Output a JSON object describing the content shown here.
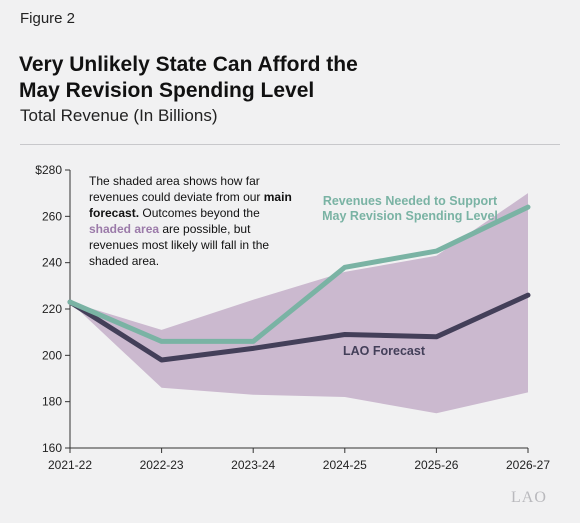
{
  "figure_label": "Figure 2",
  "title_line1": "Very Unlikely State Can Afford the",
  "title_line2": "May Revision Spending Level",
  "subtitle": "Total Revenue (In Billions)",
  "note": {
    "part1": "The shaded area shows how far revenues could deviate from our ",
    "main_forecast": "main forecast.",
    "part2": " Outcomes beyond the ",
    "shaded_area": "shaded area",
    "part3": " are possible, but revenues most likely will fall in the shaded area."
  },
  "logo": "LAO",
  "colors": {
    "background": "#f1f1f2",
    "band": "#cbb9cf",
    "lao_forecast": "#433f59",
    "revenues_needed": "#7ab3a4",
    "axis": "#333333",
    "shaded_text": "#9b7aa9"
  },
  "chart_data": {
    "type": "line",
    "categories": [
      "2021-22",
      "2022-23",
      "2023-24",
      "2024-25",
      "2025-26",
      "2026-27"
    ],
    "ylim": [
      160,
      280
    ],
    "yticks": [
      160,
      180,
      200,
      220,
      240,
      260,
      280
    ],
    "ytick_labels": [
      "160",
      "180",
      "200",
      "220",
      "240",
      "260",
      "$280"
    ],
    "grid": false,
    "band": {
      "upper": [
        223,
        211,
        224,
        236,
        243,
        270
      ],
      "lower": [
        223,
        186,
        183,
        182,
        175,
        184
      ]
    },
    "series": [
      {
        "name": "LAO Forecast",
        "values": [
          223,
          198,
          203,
          209,
          208,
          226
        ],
        "color": "#433f59"
      },
      {
        "name": "Revenues Needed to Support May Revision Spending Level",
        "label_line1": "Revenues Needed to Support",
        "label_line2": "May Revision Spending Level",
        "values": [
          223,
          206,
          206,
          238,
          245,
          264
        ],
        "color": "#7ab3a4"
      }
    ]
  }
}
